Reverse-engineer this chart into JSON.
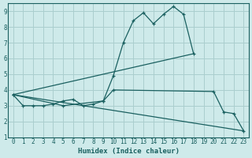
{
  "xlabel": "Humidex (Indice chaleur)",
  "background_color": "#ceeaea",
  "grid_color": "#aacece",
  "line_color": "#1a6060",
  "xlim": [
    -0.5,
    23.5
  ],
  "ylim": [
    1,
    9.5
  ],
  "xticks": [
    0,
    1,
    2,
    3,
    4,
    5,
    6,
    7,
    8,
    9,
    10,
    11,
    12,
    13,
    14,
    15,
    16,
    17,
    18,
    19,
    20,
    21,
    22,
    23
  ],
  "yticks": [
    1,
    2,
    3,
    4,
    5,
    6,
    7,
    8,
    9
  ],
  "line1_x": [
    0,
    1,
    2,
    3,
    4,
    5,
    6,
    7,
    8,
    9,
    10,
    11,
    12,
    13,
    14,
    15,
    16,
    17,
    18
  ],
  "line1_y": [
    3.7,
    3.0,
    3.0,
    3.0,
    3.1,
    3.3,
    3.4,
    3.0,
    3.1,
    3.3,
    4.9,
    7.0,
    8.4,
    8.9,
    8.2,
    8.8,
    9.3,
    8.8,
    6.3
  ],
  "line2_x": [
    0,
    18
  ],
  "line2_y": [
    3.7,
    6.3
  ],
  "line3_x": [
    0,
    5,
    9,
    10,
    20,
    21,
    22,
    23
  ],
  "line3_y": [
    3.7,
    3.0,
    3.3,
    4.0,
    3.9,
    2.6,
    2.5,
    1.4
  ],
  "line4_x": [
    0,
    23
  ],
  "line4_y": [
    3.7,
    1.4
  ]
}
